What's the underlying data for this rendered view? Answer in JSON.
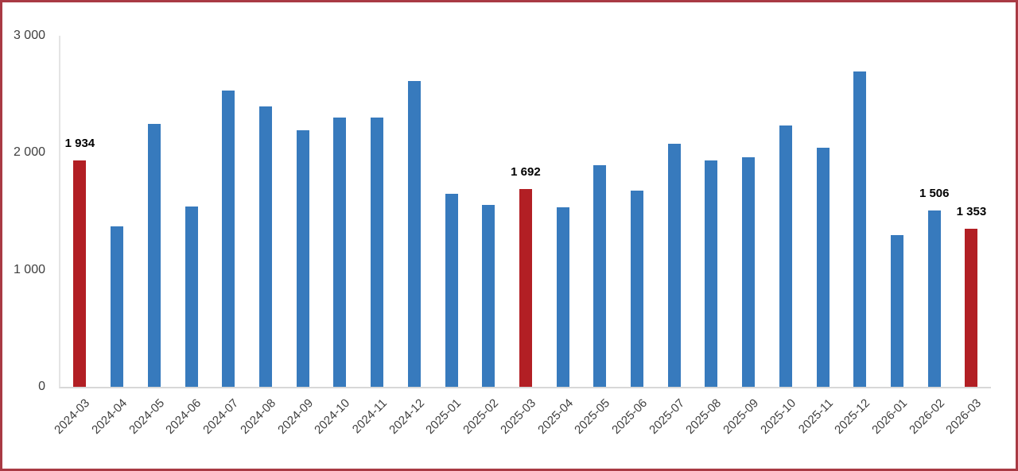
{
  "chart_data": {
    "type": "bar",
    "title": "",
    "xlabel": "",
    "ylabel": "",
    "ylim": [
      0,
      3000
    ],
    "grid": false,
    "legend": false,
    "categories": [
      "2024-03",
      "2024-04",
      "2024-05",
      "2024-06",
      "2024-07",
      "2024-08",
      "2024-09",
      "2024-10",
      "2024-11",
      "2024-12",
      "2025-01",
      "2025-02",
      "2025-03",
      "2025-04",
      "2025-05",
      "2025-06",
      "2025-07",
      "2025-08",
      "2025-09",
      "2025-10",
      "2025-11",
      "2025-12",
      "2026-01",
      "2026-02",
      "2026-03"
    ],
    "values": [
      1934,
      1370,
      2245,
      1540,
      2530,
      2395,
      2190,
      2300,
      2300,
      2615,
      1650,
      1555,
      1692,
      1535,
      1895,
      1675,
      2075,
      1935,
      1960,
      2230,
      2045,
      2695,
      1295,
      1506,
      1353
    ],
    "highlight_indices": [
      0,
      12,
      24
    ],
    "data_labels": {
      "0": "1 934",
      "12": "1 692",
      "23": "1 506",
      "24": "1 353"
    },
    "y_ticks": [
      {
        "value": 0,
        "label": "0"
      },
      {
        "value": 1000,
        "label": "1 000"
      },
      {
        "value": 2000,
        "label": "2 000"
      },
      {
        "value": 3000,
        "label": "3 000"
      }
    ]
  },
  "colors": {
    "bar": "#377ABD",
    "bar_highlight": "#B21F24",
    "frame_border": "#A93A44",
    "axis_line": "#D8D8D8",
    "tick_text": "#3F3F3F",
    "data_label_text": "#000000"
  }
}
